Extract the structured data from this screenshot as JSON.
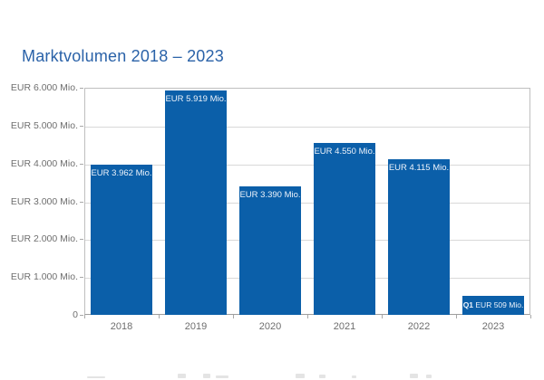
{
  "title": {
    "text": "Marktvolumen 2018 – 2023",
    "color": "#2a62a8"
  },
  "chart_data": {
    "type": "bar",
    "title": "Marktvolumen 2018 – 2023",
    "categories": [
      "2018",
      "2019",
      "2020",
      "2021",
      "2022",
      "2023"
    ],
    "values": [
      3962,
      5919,
      3390,
      4550,
      4115,
      509
    ],
    "bar_labels": [
      {
        "text": "EUR 3.962 Mio."
      },
      {
        "text": "EUR 5.919 Mio."
      },
      {
        "text": "EUR 3.390 Mio."
      },
      {
        "text": "EUR 4.550 Mio."
      },
      {
        "text": "EUR 4.115 Mio."
      },
      {
        "prefix": "Q1",
        "text": "EUR 509 Mio."
      }
    ],
    "y_ticks": [
      "EUR 6.000 Mio.",
      "EUR 5.000 Mio.",
      "EUR 4.000 Mio.",
      "EUR 3.000 Mio.",
      "EUR 2.000 Mio.",
      "EUR 1.000 Mio.",
      "0"
    ],
    "xlabel": "",
    "ylabel": "",
    "ylim": [
      0,
      6000
    ],
    "grid": true,
    "legend": "none",
    "bar_color": "#0b5fa9",
    "bar_label_color": "#edf3fb",
    "axis_text_color": "#6e6e6e",
    "grid_color": "#d9d9d9",
    "border_color": "#bfbfbf"
  }
}
